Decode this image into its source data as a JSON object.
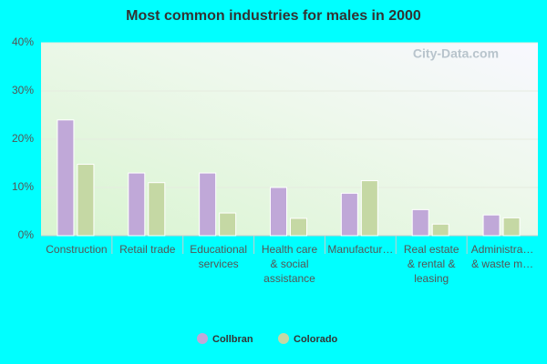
{
  "chart_data": {
    "type": "bar",
    "title": "Most common industries for males in 2000",
    "watermark": "City-Data.com",
    "categories": [
      "Construction",
      "Retail trade",
      "Educational services",
      "Health care & social assistance",
      "Manufactur…",
      "Real estate & rental & leasing",
      "Administra… & waste m…"
    ],
    "series": [
      {
        "name": "Collbran",
        "color": "#c0a8d8",
        "values": [
          24,
          13,
          13,
          10,
          8.8,
          5.4,
          4.3
        ]
      },
      {
        "name": "Colorado",
        "color": "#c5d8a4",
        "values": [
          14.8,
          11,
          4.7,
          3.6,
          11.4,
          2.4,
          3.7
        ]
      }
    ],
    "ylim": [
      0,
      40
    ],
    "yticks": [
      {
        "value": 0,
        "label": "0%"
      },
      {
        "value": 10,
        "label": "10%"
      },
      {
        "value": 20,
        "label": "20%"
      },
      {
        "value": 30,
        "label": "30%"
      },
      {
        "value": 40,
        "label": "40%"
      }
    ],
    "grid": true,
    "legend": "bottom"
  }
}
